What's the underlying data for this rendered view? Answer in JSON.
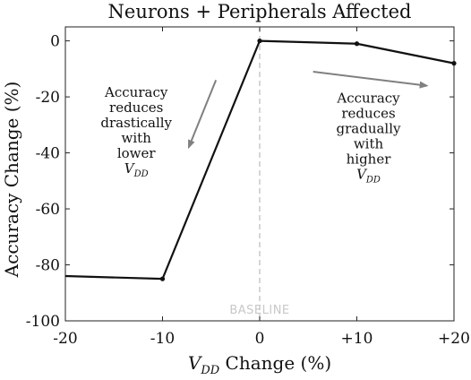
{
  "chart_data": {
    "type": "line",
    "title": "Neurons + Peripherals Affected",
    "xlabel_main": "V",
    "xlabel_sub": "DD",
    "xlabel_rest": " Change (%)",
    "ylabel": "Accuracy Change (%)",
    "xlim": [
      -20,
      20
    ],
    "ylim": [
      -100,
      5
    ],
    "x_ticks": [
      -20,
      -10,
      0,
      10,
      20
    ],
    "x_tick_labels": [
      "-20",
      "-10",
      "0",
      "+10",
      "+20"
    ],
    "y_ticks": [
      0,
      -20,
      -40,
      -60,
      -80,
      -100
    ],
    "y_tick_labels": [
      "0",
      "-20",
      "-40",
      "-60",
      "-80",
      "-100"
    ],
    "grid": false,
    "series": [
      {
        "x": [
          -20,
          -10,
          0,
          10,
          20
        ],
        "y": [
          -84,
          -85,
          0,
          -1,
          -8
        ],
        "markers": [
          false,
          true,
          true,
          true,
          true
        ],
        "color": "#111111"
      }
    ],
    "baseline": {
      "x": 0,
      "label": "BASELINE",
      "color": "#c0c0c0"
    },
    "annotations": [
      {
        "lines": [
          "Accuracy",
          "reduces",
          "drastically",
          "with",
          "lower"
        ],
        "vdd_main": "V",
        "vdd_sub": "DD",
        "arrow_color": "#808080"
      },
      {
        "lines": [
          "Accuracy",
          "reduces",
          "gradually",
          "with",
          "higher"
        ],
        "vdd_main": "V",
        "vdd_sub": "DD",
        "arrow_color": "#808080"
      }
    ]
  }
}
